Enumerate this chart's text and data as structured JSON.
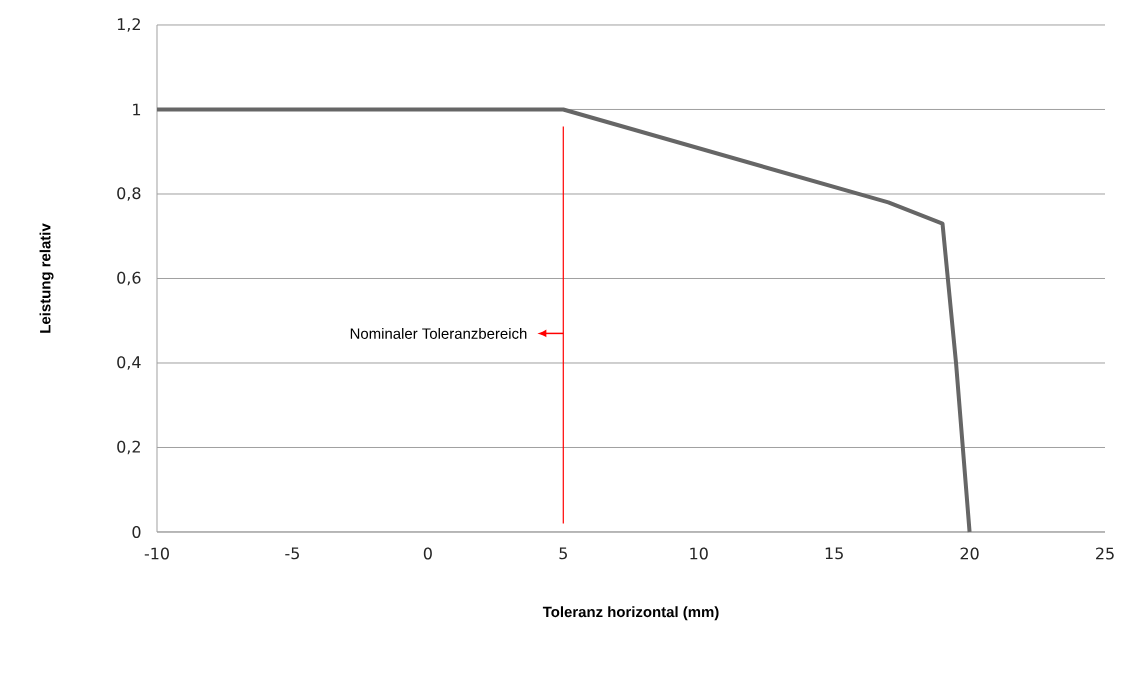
{
  "chart_data": {
    "type": "line",
    "xlabel": "Toleranz horizontal (mm)",
    "ylabel": "Leistung relativ",
    "series": [
      {
        "color": "#666666",
        "x": [
          -10,
          5,
          17,
          19,
          19.5,
          20
        ],
        "values": [
          1,
          1,
          0.78,
          0.73,
          0.4,
          0
        ]
      }
    ],
    "xlim": [
      -10,
      25
    ],
    "ylim": [
      0,
      1.2
    ],
    "xticks": [
      -10,
      -5,
      0,
      5,
      10,
      15,
      20,
      25
    ],
    "yticks": [
      {
        "value": 0,
        "label": "0"
      },
      {
        "value": 0.2,
        "label": "0,2"
      },
      {
        "value": 0.4,
        "label": "0,4"
      },
      {
        "value": 0.6,
        "label": "0,6"
      },
      {
        "value": 0.8,
        "label": "0,8"
      },
      {
        "value": 1,
        "label": "1"
      },
      {
        "value": 1.2,
        "label": "1,2"
      }
    ],
    "grid": "y",
    "marker": "none",
    "line_style": "solid",
    "ref_lines": [
      {
        "axis": "x",
        "value": 5,
        "label": "Nominaler Toleranzbereich",
        "color": "#ff0000"
      }
    ]
  }
}
